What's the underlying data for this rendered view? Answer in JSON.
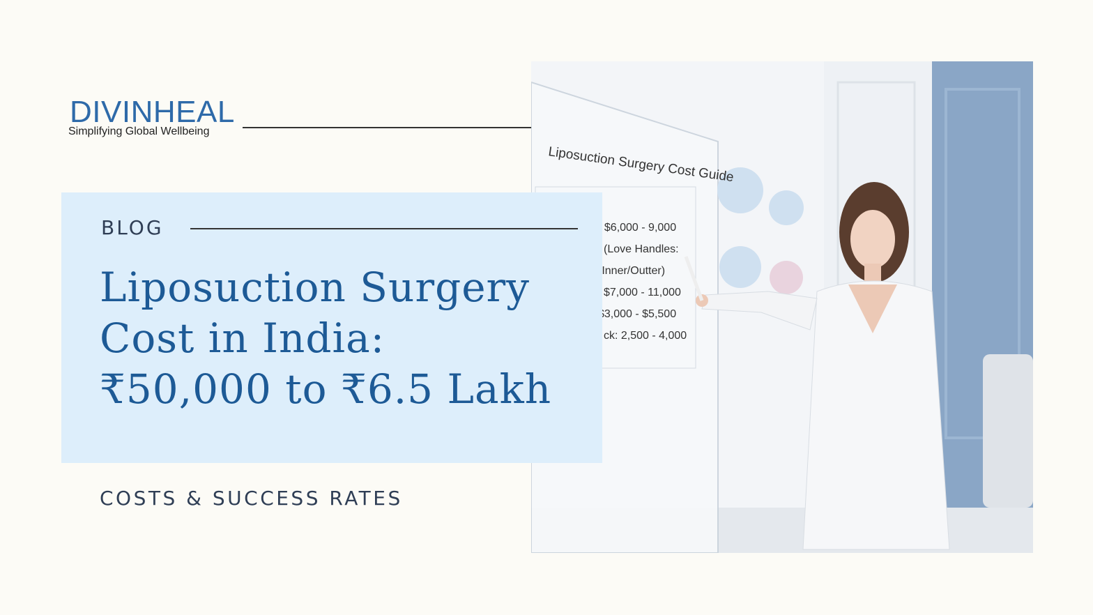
{
  "brand": {
    "name": "DIVINHEAL",
    "tagline": "Simplifying Global Wellbeing"
  },
  "label": "BLOG",
  "title_lines": [
    "Liposuction Surgery",
    "Cost in India:",
    "₹50,000 to ₹6.5 Lakh"
  ],
  "subtitle": "COSTS & SUCCESS RATES",
  "photo": {
    "board_title": "Liposuction Surgery Cost Guide",
    "board_lines": [
      ": $6,000 - 9,000",
      "(Love Handles:",
      "(Inner/Outter)",
      "$7,000 - 11,000",
      "$3,000 - $5,500",
      "ck: 2,500 - 4,000"
    ]
  }
}
